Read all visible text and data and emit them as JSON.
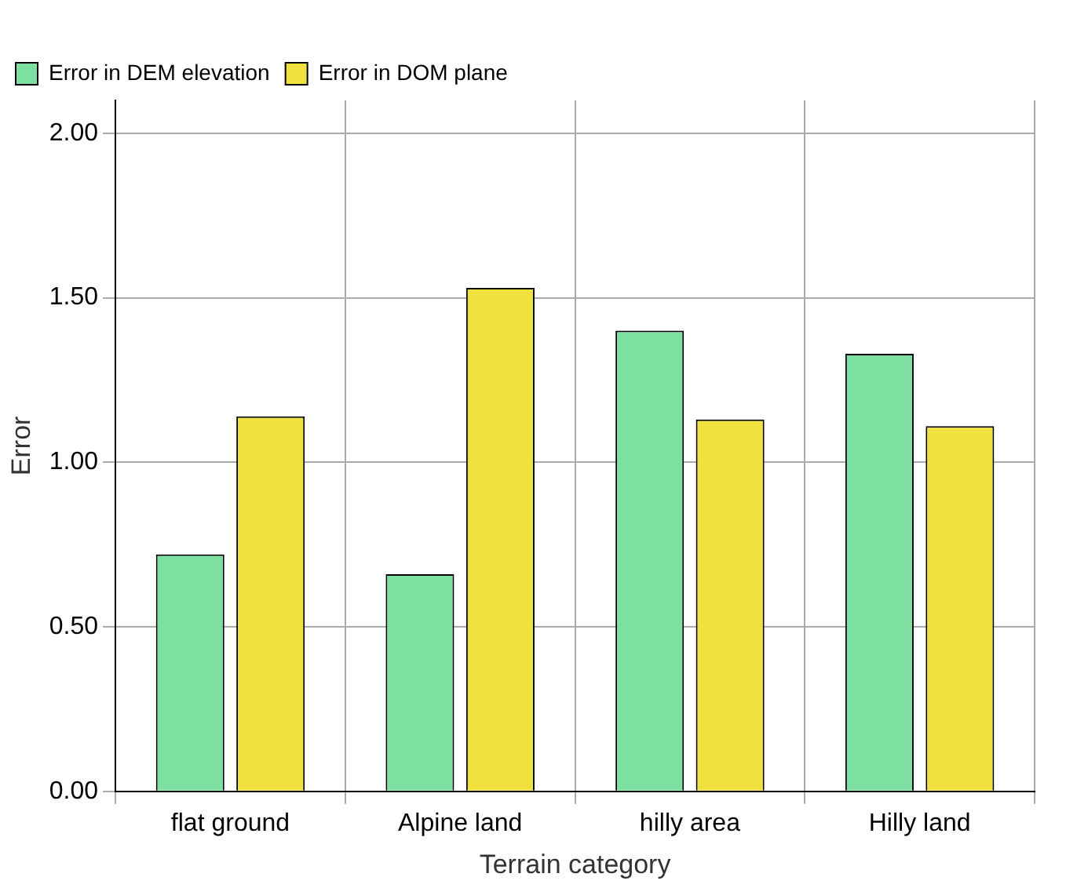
{
  "chart_data": {
    "type": "bar",
    "xlabel": "Terrain category",
    "ylabel": "Error",
    "categories": [
      "flat ground",
      "Alpine land",
      "hilly area",
      "Hilly land"
    ],
    "series": [
      {
        "name": "Error in DEM elevation",
        "color": "#7ee0a0",
        "values": [
          0.72,
          0.66,
          1.4,
          1.33
        ]
      },
      {
        "name": "Error in DOM plane",
        "color": "#f0e040",
        "values": [
          1.14,
          1.53,
          1.13,
          1.11
        ]
      }
    ],
    "ylim": [
      0,
      2.1
    ],
    "yticks": [
      {
        "value": 0,
        "label": "0.00"
      },
      {
        "value": 0.5,
        "label": "0.50"
      },
      {
        "value": 1,
        "label": "1.00"
      },
      {
        "value": 1.5,
        "label": "1.50"
      },
      {
        "value": 2,
        "label": "2.00"
      }
    ],
    "grid": true,
    "legend": "top left"
  }
}
